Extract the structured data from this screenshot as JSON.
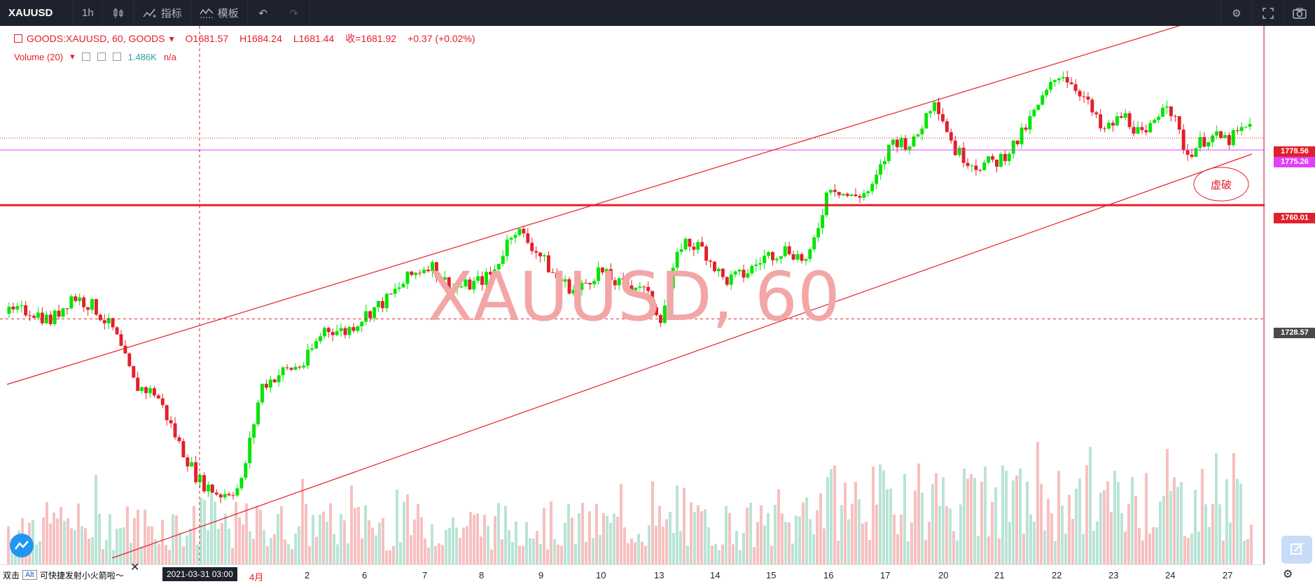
{
  "toolbar": {
    "symbol": "XAUUSD",
    "interval": "1h",
    "indicators_label": "指标",
    "templates_label": "模板"
  },
  "legend": {
    "symbol_line": "GOODS:XAUUSD, 60, GOODS",
    "open": "O1681.57",
    "high": "H1684.24",
    "low": "L1681.44",
    "close": "收=1681.92",
    "change": "+0.37 (+0.02%)",
    "volume_label": "Volume (20)",
    "volume_value": "1.486K",
    "volume_na": "n/a"
  },
  "watermark": "XAUUSD, 60",
  "annotation": "虚破",
  "price_tags": [
    {
      "label": "1778.56",
      "color": "#e2202a"
    },
    {
      "label": "1775.26",
      "color": "#e040fb"
    },
    {
      "label": "1760.01",
      "color": "#e2202a"
    },
    {
      "label": "1728.57",
      "color": "#4a4a4a"
    }
  ],
  "time_labels": [
    "4月",
    "2",
    "6",
    "7",
    "8",
    "9",
    "10",
    "13",
    "14",
    "15",
    "16",
    "17",
    "20",
    "21",
    "22",
    "23",
    "24",
    "27"
  ],
  "crosshair": {
    "date": "2021-03-31",
    "time": "03:00"
  },
  "bottom_hint": {
    "prefix": "双击",
    "key": "Alt",
    "text": "可快捷发射小火箭啦～"
  },
  "colors": {
    "up": "#26a69a",
    "down": "#ef5350",
    "candle_up": "#00e600",
    "candle_down": "#e2202a",
    "level": "#e2202a",
    "magenta": "#e040fb"
  },
  "chart_data": {
    "type": "candlestick",
    "symbol": "XAUUSD",
    "interval": "60",
    "levels": [
      1778.56,
      1775.26,
      1760.01,
      1728.57
    ],
    "ylim": [
      1676,
      1796
    ],
    "x_ticks": [
      "4月",
      "2",
      "6",
      "7",
      "8",
      "9",
      "10",
      "13",
      "14",
      "15",
      "16",
      "17",
      "20",
      "21",
      "22",
      "23",
      "24",
      "27"
    ],
    "closes_approx": [
      1730,
      1731,
      1728,
      1735,
      1732,
      1725,
      1710,
      1708,
      1695,
      1684,
      1680,
      1682,
      1710,
      1714,
      1716,
      1726,
      1725,
      1730,
      1734,
      1740,
      1744,
      1737,
      1738,
      1741,
      1754,
      1748,
      1740,
      1736,
      1742,
      1738,
      1738,
      1729,
      1750,
      1748,
      1739,
      1741,
      1746,
      1748,
      1744,
      1766,
      1762,
      1764,
      1778,
      1777,
      1790,
      1775,
      1771,
      1772,
      1778,
      1788,
      1797,
      1791,
      1780,
      1785,
      1778,
      1790,
      1774,
      1779,
      1778,
      1782
    ]
  }
}
